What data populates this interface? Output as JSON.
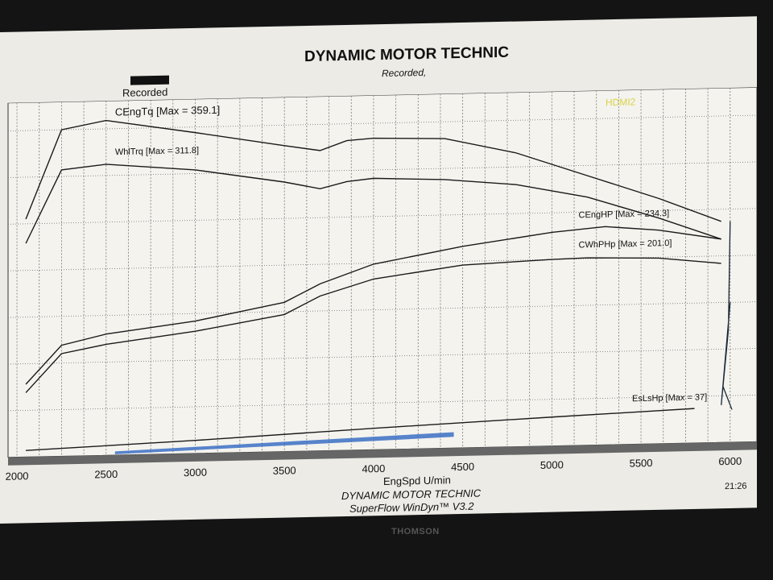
{
  "header": {
    "title": "DYNAMIC MOTOR TECHNIC",
    "subtitle": "Recorded,",
    "legend_label": "Recorded",
    "input_badge": "HDMI2"
  },
  "footer": {
    "company": "DYNAMIC MOTOR TECHNIC",
    "software": "SuperFlow WinDyn™ V3.2",
    "clock": "21:26",
    "monitor_brand": "THOMSON"
  },
  "chart_data": {
    "type": "line",
    "title": "DYNAMIC MOTOR TECHNIC",
    "xlabel": "EngSpd U/min",
    "ylabel": "",
    "xlim": [
      1950,
      6150
    ],
    "ylim": [
      0,
      380
    ],
    "xticks": [
      "2000",
      "2500",
      "3000",
      "3500",
      "4000",
      "4500",
      "5000",
      "5500",
      "6000"
    ],
    "grid": true,
    "series": [
      {
        "name": "CEngTq",
        "label": "CEngTq [Max = 359.1]",
        "x": [
          2050,
          2250,
          2500,
          3000,
          3500,
          3700,
          3850,
          4000,
          4400,
          4800,
          5200,
          5600,
          5950
        ],
        "y": [
          255,
          350,
          359,
          344,
          328,
          322,
          332,
          334,
          332,
          315,
          289,
          263,
          237
        ]
      },
      {
        "name": "WhlTrq",
        "label": "WhlTrq [Max = 311.8]",
        "x": [
          2050,
          2250,
          2500,
          3000,
          3500,
          3700,
          3850,
          4000,
          4400,
          4800,
          5200,
          5600,
          5950
        ],
        "y": [
          229,
          307,
          312,
          304,
          289,
          281,
          288,
          291,
          288,
          281,
          266,
          242,
          218
        ]
      },
      {
        "name": "CEngHP",
        "label": "CEngHP [Max = 234.3]",
        "x": [
          2050,
          2250,
          2500,
          3000,
          3500,
          3700,
          4000,
          4500,
          5000,
          5300,
          5600,
          5950
        ],
        "y": [
          78,
          119,
          130,
          142,
          160,
          179,
          199,
          216,
          229,
          234,
          229,
          218
        ]
      },
      {
        "name": "CWhPHp",
        "label": "CWhPHp [Max = 201.0]",
        "x": [
          2050,
          2250,
          2500,
          3000,
          3500,
          3700,
          4000,
          4500,
          5000,
          5200,
          5600,
          5950
        ],
        "y": [
          69,
          110,
          119,
          131,
          147,
          166,
          183,
          196,
          200,
          201,
          199,
          192
        ]
      },
      {
        "name": "EsLsHp",
        "label": "EsLsHp [Max = 37]",
        "x": [
          2050,
          3000,
          4000,
          5000,
          5800
        ],
        "y": [
          7,
          14,
          23,
          31,
          37
        ]
      }
    ],
    "colors": {
      "line": "#1a1a1a",
      "highlight": "#3b6fc4"
    }
  }
}
